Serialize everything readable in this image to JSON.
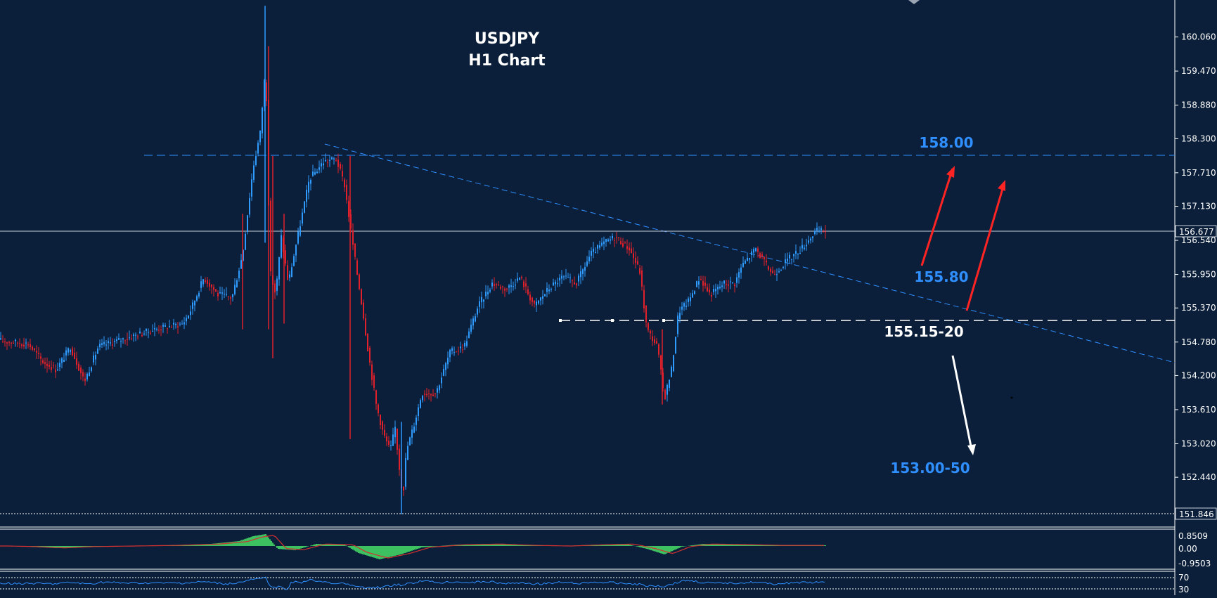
{
  "chart_data": {
    "type": "candlestick",
    "title": "USDJPY",
    "subtitle": "H1 Chart",
    "colors": {
      "background": "#0b1f3a",
      "up_candle": "#2f9bff",
      "down_candle": "#e0202a",
      "level_text": "#2f8fff",
      "arrow_bull": "#ff2424",
      "arrow_bear": "#ffffff",
      "macd_hist": "#3cc060",
      "signal": "#d33030"
    },
    "price_axis": {
      "ticks": [
        "160.060",
        "159.470",
        "158.880",
        "158.300",
        "157.710",
        "157.130",
        "156.540",
        "155.950",
        "155.370",
        "154.780",
        "154.200",
        "153.610",
        "153.020",
        "152.440"
      ],
      "range": [
        151.7,
        160.7
      ],
      "current_price": "156.677",
      "low_marker": "151.846"
    },
    "levels": {
      "resistance": "158.00",
      "trendline": "155.80",
      "support": "155.15-20",
      "target_down": "153.00-50"
    },
    "macd_axis": {
      "upper": "0.8509",
      "zero": "0.00",
      "lower": "-0.9503"
    },
    "rsi_axis": {
      "upper": "70",
      "lower": "30"
    },
    "price_path": [
      [
        0,
        154.8
      ],
      [
        40,
        154.75
      ],
      [
        60,
        154.45
      ],
      [
        80,
        154.3
      ],
      [
        100,
        154.7
      ],
      [
        120,
        154.1
      ],
      [
        140,
        154.7
      ],
      [
        180,
        154.85
      ],
      [
        220,
        155.0
      ],
      [
        260,
        155.1
      ],
      [
        270,
        155.3
      ],
      [
        290,
        155.9
      ],
      [
        310,
        155.6
      ],
      [
        330,
        155.55
      ],
      [
        345,
        156.3
      ],
      [
        360,
        157.8
      ],
      [
        370,
        158.4
      ],
      [
        378,
        159.6
      ],
      [
        384,
        156.0
      ],
      [
        392,
        155.6
      ],
      [
        400,
        156.6
      ],
      [
        410,
        155.8
      ],
      [
        420,
        156.4
      ],
      [
        440,
        157.6
      ],
      [
        460,
        157.9
      ],
      [
        478,
        157.95
      ],
      [
        490,
        157.5
      ],
      [
        498,
        156.8
      ],
      [
        505,
        156.2
      ],
      [
        515,
        155.4
      ],
      [
        525,
        154.5
      ],
      [
        535,
        153.7
      ],
      [
        545,
        153.2
      ],
      [
        555,
        152.9
      ],
      [
        562,
        153.3
      ],
      [
        568,
        152.6
      ],
      [
        573,
        152.1
      ],
      [
        578,
        152.9
      ],
      [
        590,
        153.4
      ],
      [
        600,
        153.9
      ],
      [
        620,
        153.9
      ],
      [
        640,
        154.6
      ],
      [
        660,
        154.7
      ],
      [
        680,
        155.4
      ],
      [
        700,
        155.8
      ],
      [
        720,
        155.7
      ],
      [
        740,
        155.9
      ],
      [
        760,
        155.4
      ],
      [
        780,
        155.7
      ],
      [
        800,
        155.9
      ],
      [
        820,
        155.8
      ],
      [
        840,
        156.3
      ],
      [
        860,
        156.5
      ],
      [
        875,
        156.6
      ],
      [
        895,
        156.4
      ],
      [
        910,
        156.0
      ],
      [
        920,
        155.0
      ],
      [
        935,
        154.7
      ],
      [
        945,
        153.8
      ],
      [
        955,
        154.3
      ],
      [
        965,
        155.3
      ],
      [
        980,
        155.5
      ],
      [
        995,
        155.9
      ],
      [
        1010,
        155.6
      ],
      [
        1030,
        155.8
      ],
      [
        1045,
        155.8
      ],
      [
        1055,
        156.1
      ],
      [
        1075,
        156.4
      ],
      [
        1090,
        156.1
      ],
      [
        1100,
        155.95
      ],
      [
        1120,
        156.2
      ],
      [
        1140,
        156.4
      ],
      [
        1160,
        156.7
      ],
      [
        1175,
        156.7
      ]
    ],
    "spikes": [
      [
        345,
        155.0,
        157.0
      ],
      [
        377,
        156.5,
        160.6
      ],
      [
        382,
        155.0,
        159.9
      ],
      [
        388,
        154.5,
        158.0
      ],
      [
        404,
        155.1,
        157.0
      ],
      [
        498,
        153.1,
        158.0
      ],
      [
        571,
        151.8,
        153.4
      ],
      [
        942,
        153.7,
        155.0
      ]
    ],
    "macd_hist": [
      [
        0,
        0.0
      ],
      [
        40,
        -0.05
      ],
      [
        80,
        -0.15
      ],
      [
        120,
        -0.05
      ],
      [
        180,
        0.0
      ],
      [
        240,
        0.05
      ],
      [
        300,
        0.15
      ],
      [
        340,
        0.35
      ],
      [
        360,
        0.7
      ],
      [
        378,
        0.85
      ],
      [
        395,
        -0.2
      ],
      [
        420,
        -0.3
      ],
      [
        450,
        0.15
      ],
      [
        490,
        0.1
      ],
      [
        510,
        -0.5
      ],
      [
        540,
        -0.95
      ],
      [
        570,
        -0.6
      ],
      [
        600,
        -0.1
      ],
      [
        650,
        0.1
      ],
      [
        700,
        0.15
      ],
      [
        750,
        0.05
      ],
      [
        800,
        0.0
      ],
      [
        850,
        0.1
      ],
      [
        890,
        0.15
      ],
      [
        920,
        -0.2
      ],
      [
        945,
        -0.6
      ],
      [
        970,
        -0.05
      ],
      [
        1000,
        0.15
      ],
      [
        1060,
        0.1
      ],
      [
        1100,
        0.05
      ],
      [
        1140,
        0.05
      ],
      [
        1175,
        0.05
      ]
    ]
  }
}
